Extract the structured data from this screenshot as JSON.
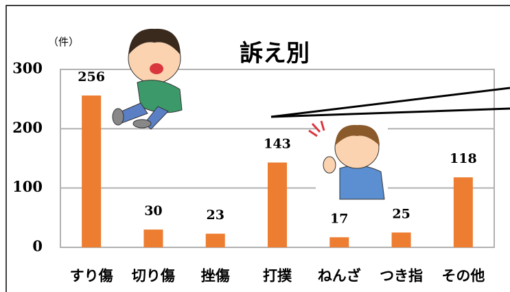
{
  "chart_data": {
    "type": "bar",
    "title": "訴え別",
    "y_label": "（件）",
    "categories": [
      "すり傷",
      "切り傷",
      "挫傷",
      "打撲",
      "ねんざ",
      "つき指",
      "その他"
    ],
    "values": [
      256,
      30,
      23,
      143,
      17,
      25,
      118
    ],
    "color": "#ed7d31",
    "ylim": [
      0,
      300
    ],
    "yticks": [
      0,
      100,
      200,
      300
    ],
    "grid": true
  }
}
